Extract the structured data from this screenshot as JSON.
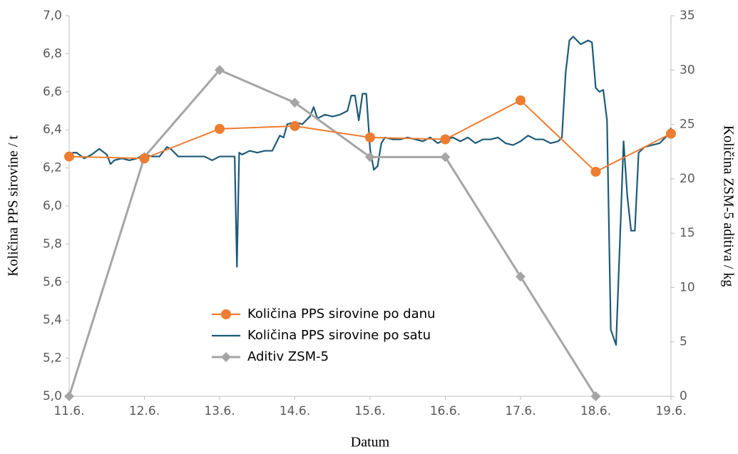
{
  "chart_data": {
    "type": "line",
    "xlabel": "Datum",
    "ylabel": "Količina PPS sirovine / t",
    "y2label": "Količina ZSM-5 aditiva / kg",
    "xlim": [
      11,
      19
    ],
    "xticks": [
      {
        "value": 11,
        "label": "11.6."
      },
      {
        "value": 12,
        "label": "12.6."
      },
      {
        "value": 13,
        "label": "13.6."
      },
      {
        "value": 14,
        "label": "14.6."
      },
      {
        "value": 15,
        "label": "15.6."
      },
      {
        "value": 16,
        "label": "16.6."
      },
      {
        "value": 17,
        "label": "17.6."
      },
      {
        "value": 18,
        "label": "18.6."
      },
      {
        "value": 19,
        "label": "19.6."
      }
    ],
    "ylim": [
      5,
      7
    ],
    "yticks": [
      {
        "value": 5,
        "label": "5,0"
      },
      {
        "value": 5.2,
        "label": "5,2"
      },
      {
        "value": 5.4,
        "label": "5,4"
      },
      {
        "value": 5.6,
        "label": "5,6"
      },
      {
        "value": 5.8,
        "label": "5,8"
      },
      {
        "value": 6,
        "label": "6,0"
      },
      {
        "value": 6.2,
        "label": "6,2"
      },
      {
        "value": 6.4,
        "label": "6,4"
      },
      {
        "value": 6.6,
        "label": "6,6"
      },
      {
        "value": 6.8,
        "label": "6,8"
      },
      {
        "value": 7,
        "label": "7,0"
      }
    ],
    "y2lim": [
      0,
      35
    ],
    "y2ticks": [
      0,
      5,
      10,
      15,
      20,
      25,
      30,
      35
    ],
    "grid": false,
    "series": [
      {
        "name": "Količina PPS sirovine po danu",
        "color": "#ed7d31",
        "marker": "circle",
        "x": [
          11,
          12,
          13,
          14,
          15,
          16,
          17,
          18,
          19
        ],
        "values": [
          6.26,
          6.25,
          6.405,
          6.42,
          6.36,
          6.35,
          6.555,
          6.18,
          6.38
        ]
      },
      {
        "name": "Količina PPS sirovine po satu",
        "color": "#1d5a78",
        "marker": "none",
        "x": [
          11.0,
          11.05,
          11.1,
          11.2,
          11.3,
          11.4,
          11.5,
          11.55,
          11.6,
          11.7,
          11.8,
          11.9,
          12.0,
          12.1,
          12.2,
          12.3,
          12.35,
          12.45,
          12.6,
          12.8,
          12.9,
          13.0,
          13.1,
          13.2,
          13.23,
          13.26,
          13.3,
          13.4,
          13.5,
          13.6,
          13.7,
          13.8,
          13.85,
          13.9,
          14.0,
          14.1,
          14.2,
          14.25,
          14.3,
          14.4,
          14.5,
          14.6,
          14.7,
          14.75,
          14.8,
          14.85,
          14.9,
          14.95,
          15.0,
          15.05,
          15.1,
          15.15,
          15.2,
          15.3,
          15.4,
          15.5,
          15.6,
          15.7,
          15.8,
          15.9,
          16.0,
          16.1,
          16.2,
          16.3,
          16.4,
          16.5,
          16.6,
          16.7,
          16.8,
          16.9,
          17.0,
          17.1,
          17.2,
          17.3,
          17.4,
          17.5,
          17.55,
          17.6,
          17.65,
          17.7,
          17.8,
          17.9,
          17.95,
          18.0,
          18.05,
          18.1,
          18.15,
          18.2,
          18.27,
          18.32,
          18.37,
          18.42,
          18.47,
          18.52,
          18.57,
          18.65,
          18.75,
          18.85,
          18.95,
          19.0
        ],
        "values": [
          6.25,
          6.28,
          6.28,
          6.25,
          6.27,
          6.3,
          6.27,
          6.22,
          6.24,
          6.25,
          6.24,
          6.25,
          6.27,
          6.26,
          6.26,
          6.31,
          6.3,
          6.26,
          6.26,
          6.26,
          6.24,
          6.26,
          6.26,
          6.26,
          5.68,
          6.28,
          6.27,
          6.29,
          6.28,
          6.29,
          6.29,
          6.37,
          6.36,
          6.43,
          6.44,
          6.43,
          6.47,
          6.52,
          6.46,
          6.48,
          6.47,
          6.48,
          6.5,
          6.58,
          6.58,
          6.45,
          6.59,
          6.59,
          6.3,
          6.19,
          6.21,
          6.33,
          6.36,
          6.35,
          6.35,
          6.36,
          6.35,
          6.34,
          6.36,
          6.33,
          6.35,
          6.36,
          6.34,
          6.36,
          6.33,
          6.35,
          6.35,
          6.36,
          6.33,
          6.32,
          6.34,
          6.37,
          6.35,
          6.35,
          6.33,
          6.34,
          6.36,
          6.7,
          6.87,
          6.89,
          6.85,
          6.87,
          6.86,
          6.62,
          6.6,
          6.61,
          6.45,
          5.35,
          5.27,
          5.8,
          6.34,
          6.05,
          5.87,
          5.87,
          6.28,
          6.31,
          6.32,
          6.33,
          6.37,
          6.41
        ]
      },
      {
        "name": "Aditiv ZSM-5",
        "color": "#a5a5a5",
        "marker": "diamond",
        "axis": "y2",
        "x": [
          11,
          12,
          13,
          14,
          15,
          16,
          17,
          18
        ],
        "values": [
          0,
          22,
          30,
          27,
          22,
          22,
          11,
          0
        ]
      }
    ]
  }
}
